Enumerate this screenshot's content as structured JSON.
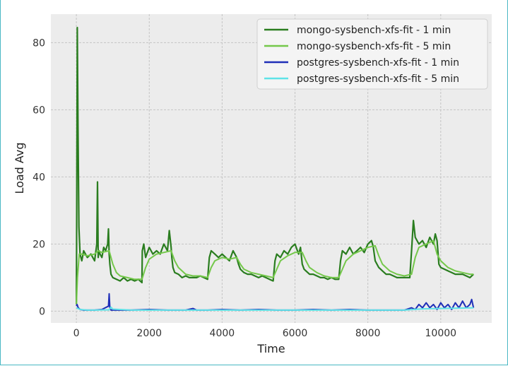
{
  "chart_data": {
    "type": "line",
    "xlabel": "Time",
    "ylabel": "Load Avg",
    "xlim": [
      -700,
      11400
    ],
    "ylim": [
      -3.5,
      88.5
    ],
    "x_ticks": [
      0,
      2000,
      4000,
      6000,
      8000,
      10000
    ],
    "y_ticks": [
      0,
      20,
      40,
      60,
      80
    ],
    "grid": true,
    "legend_position": "top-right",
    "background_color": "#ececec",
    "series": [
      {
        "name": "mongo-sysbench-xfs-fit - 1 min",
        "color": "#2a7d1f",
        "x": [
          0,
          10,
          25,
          45,
          70,
          100,
          150,
          200,
          300,
          400,
          500,
          560,
          580,
          600,
          620,
          650,
          700,
          750,
          800,
          860,
          880,
          900,
          920,
          950,
          1000,
          1100,
          1200,
          1300,
          1400,
          1500,
          1600,
          1700,
          1800,
          1810,
          1850,
          1900,
          2000,
          2100,
          2200,
          2300,
          2400,
          2500,
          2550,
          2600,
          2620,
          2650,
          2700,
          2800,
          2900,
          3000,
          3100,
          3200,
          3300,
          3400,
          3500,
          3600,
          3650,
          3700,
          3800,
          3900,
          4000,
          4100,
          4200,
          4300,
          4400,
          4450,
          4500,
          4600,
          4700,
          4800,
          4900,
          5000,
          5100,
          5200,
          5300,
          5400,
          5450,
          5500,
          5600,
          5700,
          5800,
          5900,
          6000,
          6100,
          6150,
          6200,
          6250,
          6300,
          6400,
          6500,
          6600,
          6700,
          6800,
          6900,
          7000,
          7100,
          7200,
          7250,
          7300,
          7400,
          7500,
          7600,
          7700,
          7800,
          7900,
          8000,
          8100,
          8150,
          8200,
          8300,
          8400,
          8500,
          8600,
          8700,
          8800,
          8900,
          9000,
          9100,
          9150,
          9200,
          9250,
          9300,
          9400,
          9500,
          9600,
          9700,
          9800,
          9850,
          9900,
          9950,
          10000,
          10100,
          10200,
          10300,
          10400,
          10500,
          10600,
          10700,
          10800,
          10900
        ],
        "y": [
          2,
          30,
          84.5,
          55,
          25,
          17,
          15,
          18,
          16,
          17,
          15,
          20,
          38.5,
          16,
          18,
          17,
          16,
          19,
          18,
          20,
          24.5,
          17,
          14,
          11,
          10,
          9.5,
          9,
          10,
          9,
          9.5,
          9,
          9.5,
          8.5,
          18,
          20,
          16,
          19,
          17,
          18,
          17,
          20,
          18,
          24,
          19,
          16,
          13,
          11.5,
          11,
          10,
          10.5,
          10,
          10,
          10,
          10.5,
          10,
          9.5,
          16,
          18,
          17,
          16,
          17,
          16,
          15,
          18,
          16,
          14,
          12.5,
          11.5,
          11,
          11,
          10.5,
          10,
          10.5,
          10,
          9.5,
          9,
          15,
          17,
          16,
          18,
          17,
          19,
          20,
          17,
          19,
          14,
          12.5,
          12,
          11,
          11,
          10.5,
          10,
          10,
          9.5,
          10,
          9.5,
          9.5,
          15,
          18,
          17,
          19,
          17,
          18,
          19,
          17.5,
          20,
          21,
          19,
          15,
          13,
          12,
          11,
          11,
          10.5,
          10,
          10,
          10,
          10,
          10,
          18,
          27,
          22,
          20,
          21,
          19,
          22,
          20,
          23,
          21,
          14,
          13,
          12.5,
          12,
          11.5,
          11,
          11,
          11,
          10.5,
          10,
          11
        ]
      },
      {
        "name": "mongo-sysbench-xfs-fit - 5 min",
        "color": "#74c84a",
        "x": [
          0,
          30,
          80,
          150,
          300,
          500,
          600,
          700,
          900,
          1000,
          1100,
          1200,
          1400,
          1600,
          1800,
          1900,
          2000,
          2200,
          2400,
          2600,
          2700,
          2800,
          3000,
          3200,
          3400,
          3600,
          3700,
          3800,
          4000,
          4200,
          4400,
          4500,
          4600,
          4800,
          5000,
          5200,
          5400,
          5500,
          5600,
          5800,
          6000,
          6200,
          6300,
          6400,
          6600,
          6800,
          7000,
          7200,
          7300,
          7400,
          7600,
          7800,
          8000,
          8200,
          8300,
          8400,
          8600,
          8800,
          9000,
          9200,
          9300,
          9400,
          9600,
          9800,
          9900,
          10000,
          10200,
          10400,
          10600,
          10800,
          10900
        ],
        "y": [
          2,
          10,
          17,
          17,
          16.5,
          17,
          18,
          17.5,
          18,
          14,
          11.5,
          10.5,
          10,
          9.5,
          9.5,
          13,
          15.5,
          17,
          17.5,
          18,
          15,
          13,
          11,
          10.5,
          10.5,
          10,
          13,
          15,
          16,
          15.5,
          16,
          14,
          12.5,
          11.5,
          11,
          10.5,
          10,
          12.5,
          15,
          16.5,
          17.5,
          17.5,
          15,
          13,
          11.5,
          10.5,
          10,
          10,
          12.5,
          15,
          17,
          18,
          19,
          19.5,
          16.5,
          14,
          12,
          11,
          10.5,
          11,
          16,
          19,
          20,
          21,
          17,
          15,
          13,
          12,
          11.5,
          11,
          11
        ]
      },
      {
        "name": "postgres-sysbench-xfs-fit - 1 min",
        "color": "#1f2fb8",
        "x": [
          0,
          20,
          50,
          100,
          200,
          300,
          500,
          700,
          880,
          900,
          920,
          950,
          1000,
          1200,
          1500,
          2000,
          2500,
          3000,
          3200,
          3300,
          3600,
          4000,
          4500,
          5000,
          5500,
          6000,
          6500,
          7000,
          7500,
          8000,
          8500,
          9000,
          9200,
          9300,
          9400,
          9500,
          9600,
          9700,
          9800,
          9900,
          10000,
          10100,
          10200,
          10300,
          10400,
          10500,
          10600,
          10700,
          10800,
          10850,
          10900
        ],
        "y": [
          1.5,
          2,
          1,
          0.5,
          0.3,
          0.3,
          0.3,
          0.5,
          1.5,
          5.2,
          1,
          0.3,
          0.3,
          0.3,
          0.3,
          0.5,
          0.3,
          0.3,
          0.8,
          0.3,
          0.3,
          0.5,
          0.3,
          0.5,
          0.3,
          0.3,
          0.5,
          0.3,
          0.5,
          0.3,
          0.3,
          0.3,
          1,
          0.5,
          2,
          1,
          2.5,
          1,
          2,
          0.5,
          2.5,
          1,
          2,
          0.5,
          2.5,
          1,
          3,
          1,
          2,
          3.5,
          1
        ]
      },
      {
        "name": "postgres-sysbench-xfs-fit - 5 min",
        "color": "#5fe3e8",
        "x": [
          0,
          100,
          300,
          500,
          900,
          950,
          1000,
          1500,
          2000,
          3000,
          4000,
          5000,
          6000,
          7000,
          8000,
          9000,
          9500,
          10000,
          10500,
          10900
        ],
        "y": [
          1,
          0.5,
          0.3,
          0.3,
          0.4,
          1.2,
          0.6,
          0.3,
          0.3,
          0.3,
          0.3,
          0.3,
          0.3,
          0.3,
          0.3,
          0.3,
          0.7,
          0.8,
          0.9,
          1
        ]
      }
    ]
  }
}
